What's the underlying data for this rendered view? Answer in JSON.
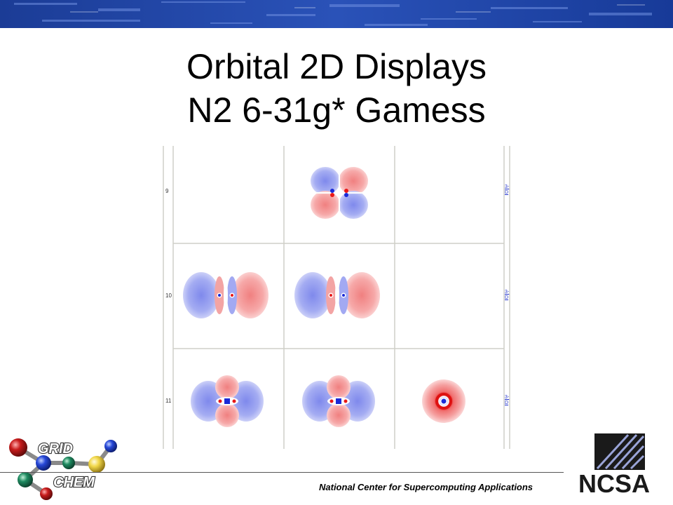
{
  "slide": {
    "title_line1": "Orbital 2D Displays",
    "title_line2": "N2 6-31g* Gamess"
  },
  "orbital_table": {
    "rows": [
      {
        "label": "9",
        "link_line1": "3-",
        "link_line2": "D"
      },
      {
        "label": "10",
        "link_line1": "3-",
        "link_line2": "D"
      },
      {
        "label": "11",
        "link_line1": "3-",
        "link_line2": "D"
      }
    ]
  },
  "footer": {
    "text": "National Center for Supercomputing Applications"
  },
  "logos": {
    "gridchem_line1": "GRID",
    "gridchem_line2": "CHEM",
    "ncsa": "NCSA"
  },
  "colors": {
    "banner": "#1a3d9c",
    "positive_lobe": "#f48f8f",
    "negative_lobe": "#8e97ef",
    "link": "#2233cc"
  }
}
